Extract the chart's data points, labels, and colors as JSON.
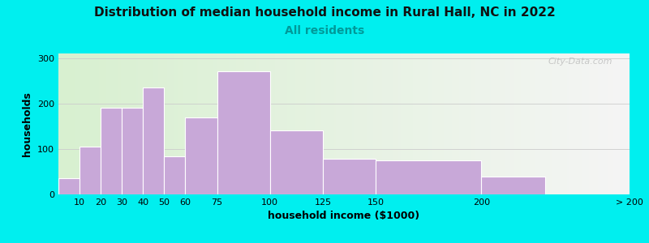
{
  "title": "Distribution of median household income in Rural Hall, NC in 2022",
  "subtitle": "All residents",
  "xlabel": "household income ($1000)",
  "ylabel": "households",
  "background_outer": "#00EFEF",
  "background_inner_left": "#d8f0d0",
  "background_inner_right": "#f5f5f5",
  "bar_color": "#c8a8d8",
  "bar_edgecolor": "#ffffff",
  "bin_edges": [
    0,
    10,
    20,
    30,
    40,
    50,
    60,
    75,
    100,
    125,
    150,
    200,
    230,
    270
  ],
  "tick_positions": [
    10,
    20,
    30,
    40,
    50,
    60,
    75,
    100,
    125,
    150,
    200,
    270
  ],
  "tick_labels": [
    "10",
    "20",
    "30",
    "40",
    "50",
    "60",
    "75",
    "100",
    "125",
    "150",
    "200",
    "> 200"
  ],
  "values": [
    35,
    105,
    190,
    190,
    235,
    83,
    170,
    270,
    140,
    78,
    75,
    40
  ],
  "ylim": [
    0,
    310
  ],
  "yticks": [
    0,
    100,
    200,
    300
  ],
  "title_fontsize": 11,
  "subtitle_fontsize": 10,
  "axis_label_fontsize": 9,
  "tick_fontsize": 8,
  "watermark": "City-Data.com"
}
